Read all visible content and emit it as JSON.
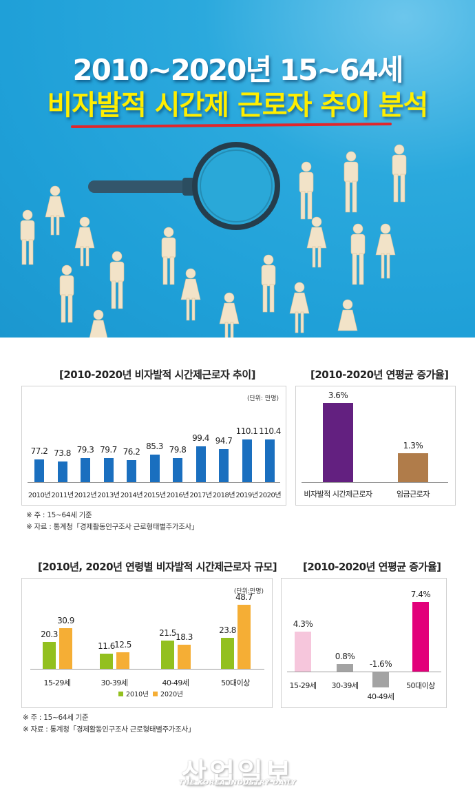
{
  "hero": {
    "title_line1": "2010~2020년 15~64세",
    "title_line2": "비자발적 시간제 근로자 추이 분석",
    "underline_color": "#e1262b",
    "background_color": "#1fa0d8",
    "image_description": "wooden people figures and magnifying glass on blue background"
  },
  "section1": {
    "footnote_note": "※ 주 : 15~64세 기준",
    "footnote_source": "※ 자료 : 통계청「경제활동인구조사 근로형태별주가조사」"
  },
  "section2": {
    "footnote_note": "※ 주 : 15~64세 기준",
    "footnote_source": "※ 자료 : 통계청「경제활동인구조사 근로형태별주가조사」"
  },
  "logo": {
    "korean": "산업일보",
    "english": "THE KOREA INDUSTRY DAILY"
  },
  "chart_data": [
    {
      "id": "trend",
      "type": "bar",
      "title": "[2010-2020년 비자발적 시간제근로자 추이]",
      "unit": "(단위: 만명)",
      "categories": [
        "2010년",
        "2011년",
        "2012년",
        "2013년",
        "2014년",
        "2015년",
        "2016년",
        "2017년",
        "2018년",
        "2019년",
        "2020년"
      ],
      "values": [
        77.2,
        73.8,
        79.3,
        79.7,
        76.2,
        85.3,
        79.8,
        99.4,
        94.7,
        110.1,
        110.4
      ],
      "labels": [
        "77.2",
        "73.8",
        "79.3",
        "79.7",
        "76.2",
        "85.3",
        "79.8",
        "99.4",
        "94.7",
        "110.1",
        "110.4"
      ],
      "color": "#1a6fbf",
      "xlabel": "",
      "ylabel": "",
      "grid": false
    },
    {
      "id": "growth_total",
      "type": "bar",
      "title": "[2010-2020년 연평균 증가율]",
      "categories": [
        "비자발적 시간제근로자",
        "임금근로자"
      ],
      "values": [
        3.6,
        1.3
      ],
      "labels": [
        "3.6%",
        "1.3%"
      ],
      "colors": [
        "#632080",
        "#b07c4a"
      ],
      "xlabel": "",
      "ylabel": "",
      "grid": false
    },
    {
      "id": "age_scale",
      "type": "bar",
      "title": "[2010년, 2020년 연령별 비자발적 시간제근로자 규모]",
      "unit": "(단위:만명)",
      "categories": [
        "15-29세",
        "30-39세",
        "40-49세",
        "50대이상"
      ],
      "series": [
        {
          "name": "2010년",
          "values": [
            20.3,
            11.6,
            21.5,
            23.8
          ],
          "labels": [
            "20.3",
            "11.6",
            "21.5",
            "23.8"
          ],
          "color": "#93c01f"
        },
        {
          "name": "2020년",
          "values": [
            30.9,
            12.5,
            18.3,
            48.7
          ],
          "labels": [
            "30.9",
            "12.5",
            "18.3",
            "48.7"
          ],
          "color": "#f5ae35"
        }
      ],
      "legend": [
        "2010년",
        "2020년"
      ],
      "legend_position": "bottom",
      "xlabel": "",
      "ylabel": "",
      "grid": false
    },
    {
      "id": "growth_age",
      "type": "bar",
      "title": "[2010-2020년 연평균 증가율]",
      "categories": [
        "15-29세",
        "30-39세",
        "40-49세",
        "50대이상"
      ],
      "values": [
        4.3,
        0.8,
        -1.6,
        7.4
      ],
      "labels": [
        "4.3%",
        "0.8%",
        "-1.6%",
        "7.4%"
      ],
      "colors": [
        "#f6c6dc",
        "#a3a3a3",
        "#a3a3a3",
        "#e2007a"
      ],
      "xlabel": "",
      "ylabel": "",
      "grid": false
    }
  ]
}
